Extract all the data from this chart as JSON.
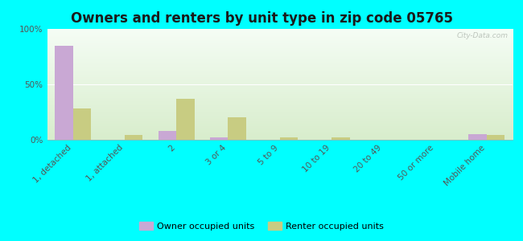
{
  "title": "Owners and renters by unit type in zip code 05765",
  "categories": [
    "1, detached",
    "1, attached",
    "2",
    "3 or 4",
    "5 to 9",
    "10 to 19",
    "20 to 49",
    "50 or more",
    "Mobile home"
  ],
  "owner_values": [
    85,
    0,
    8,
    2,
    0,
    0,
    0,
    0,
    5
  ],
  "renter_values": [
    28,
    4,
    37,
    20,
    2,
    2,
    0,
    0,
    4
  ],
  "owner_color": "#c9a8d4",
  "renter_color": "#c8cc82",
  "outer_bg": "#00ffff",
  "ylim": [
    0,
    100
  ],
  "yticks": [
    0,
    50,
    100
  ],
  "yticklabels": [
    "0%",
    "50%",
    "100%"
  ],
  "bar_width": 0.35,
  "legend_owner": "Owner occupied units",
  "legend_renter": "Renter occupied units",
  "title_fontsize": 12,
  "watermark": "City-Data.com"
}
